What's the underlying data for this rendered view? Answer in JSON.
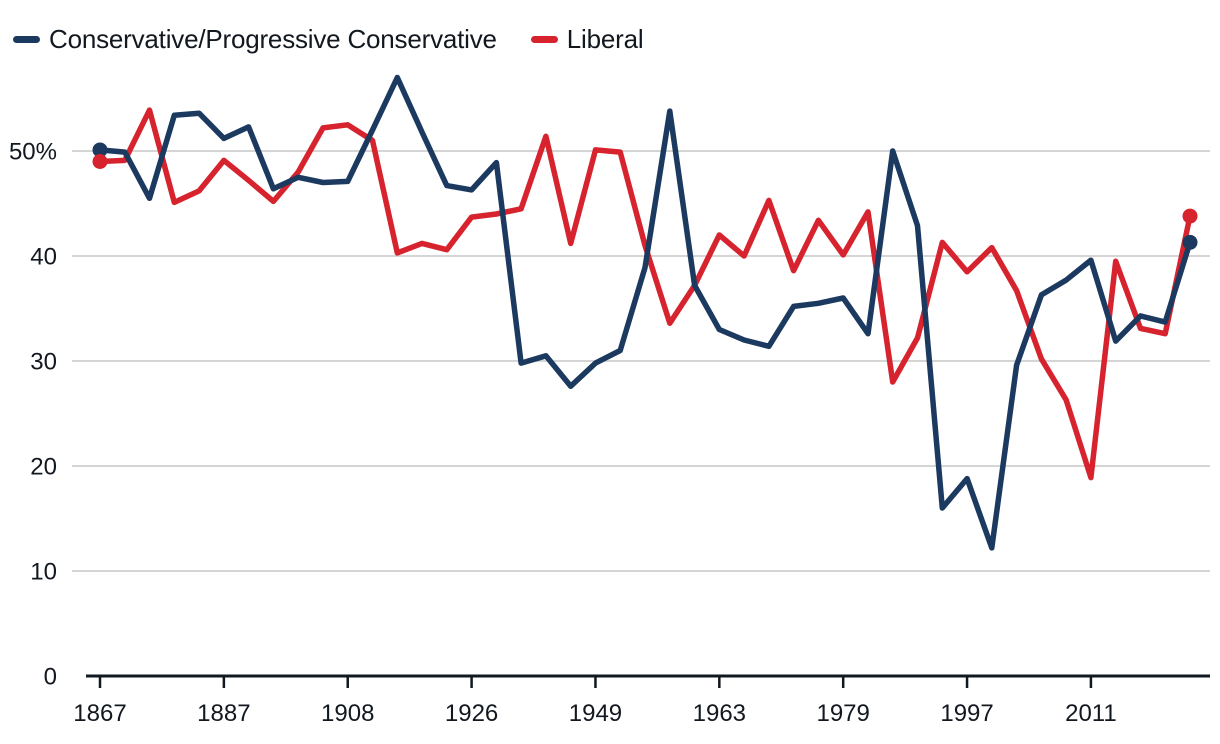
{
  "legend": {
    "items": [
      {
        "label": "Conservative/Progressive Conservative",
        "color": "#1c3a60"
      },
      {
        "label": "Liberal",
        "color": "#d6232e"
      }
    ]
  },
  "chart_data": {
    "type": "line",
    "x_unit": "federal election year (one step per election)",
    "x": [
      1867,
      1872,
      1874,
      1878,
      1882,
      1887,
      1891,
      1896,
      1900,
      1904,
      1908,
      1911,
      1917,
      1921,
      1925,
      1926,
      1930,
      1935,
      1940,
      1945,
      1949,
      1953,
      1957,
      1958,
      1962,
      1963,
      1965,
      1968,
      1972,
      1974,
      1979,
      1980,
      1984,
      1988,
      1993,
      1997,
      2000,
      2004,
      2006,
      2008,
      2011,
      2015,
      2019,
      2021,
      2025
    ],
    "series": [
      {
        "name": "Conservative/Progressive Conservative",
        "color": "#1c3a60",
        "values": [
          50.1,
          49.9,
          45.5,
          53.4,
          53.6,
          51.2,
          52.3,
          46.4,
          47.5,
          47.0,
          47.1,
          52.0,
          57.0,
          51.8,
          46.7,
          46.3,
          48.9,
          29.8,
          30.5,
          27.6,
          29.8,
          31.0,
          38.9,
          53.8,
          37.2,
          33.0,
          32.0,
          31.4,
          35.2,
          35.5,
          36.0,
          32.6,
          50.0,
          42.9,
          16.0,
          18.8,
          12.2,
          29.6,
          36.3,
          37.7,
          39.6,
          31.9,
          34.3,
          33.7,
          41.3
        ]
      },
      {
        "name": "Liberal",
        "color": "#d6232e",
        "values": [
          49.0,
          49.1,
          53.9,
          45.1,
          46.2,
          49.1,
          47.2,
          45.2,
          48.0,
          52.2,
          52.5,
          51.0,
          40.3,
          41.2,
          40.6,
          43.7,
          44.0,
          44.5,
          51.4,
          41.2,
          50.1,
          49.9,
          41.0,
          33.6,
          37.2,
          42.0,
          40.0,
          45.3,
          38.6,
          43.4,
          40.1,
          44.2,
          28.0,
          32.2,
          41.3,
          38.5,
          40.8,
          36.7,
          30.2,
          26.3,
          18.9,
          39.5,
          33.1,
          32.6,
          43.8
        ]
      }
    ],
    "yticks": {
      "values": [
        50,
        40,
        30,
        20,
        10,
        0
      ],
      "labels": [
        "50%",
        "40",
        "30",
        "20",
        "10",
        "0"
      ]
    },
    "xticks": {
      "indices": [
        0,
        5,
        10,
        15,
        20,
        25,
        30,
        35,
        40
      ],
      "labels": [
        "1867",
        "1887",
        "1908",
        "1926",
        "1949",
        "1963",
        "1979",
        "1997",
        "2011"
      ]
    },
    "ylim": [
      0,
      58
    ],
    "grid": "horizontal",
    "legend_position": "top-left",
    "endpoint_dots": true
  },
  "style_colors": {
    "grid": "#cfcfcf",
    "axis": "#12181f",
    "text": "#12181f",
    "background": "#ffffff"
  }
}
